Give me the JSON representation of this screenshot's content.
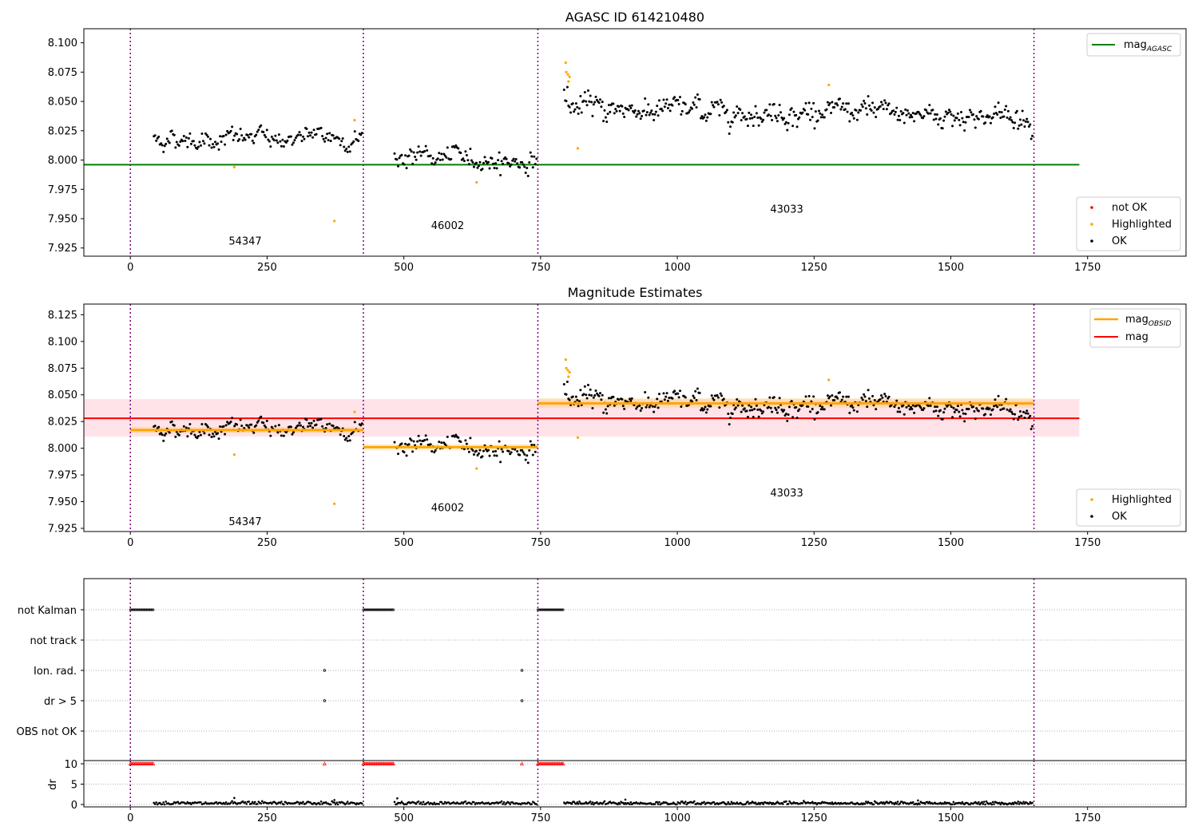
{
  "figure": {
    "panel1_title": "AGASC ID 614210480",
    "panel2_title": "Magnitude Estimates"
  },
  "colors": {
    "ok": "#000000",
    "highlighted": "#ffa500",
    "not_ok": "#ff0000",
    "agasc_line": "#008000",
    "obsid_mag": "#ffa500",
    "mag_line": "#ff0000",
    "mag_band": "#ffc0cb",
    "obsid_boundary": "#800080",
    "flag_grid": "#b0b0b0"
  },
  "chart_data": [
    {
      "type": "scatter",
      "panel": "top",
      "title": "AGASC ID 614210480",
      "xlim": [
        -85,
        1930
      ],
      "ylim": [
        7.918,
        8.112
      ],
      "x_ticks": [
        0,
        250,
        500,
        750,
        1000,
        1250,
        1500,
        1750
      ],
      "y_ticks": [
        7.925,
        7.95,
        7.975,
        8.0,
        8.025,
        8.05,
        8.075,
        8.1
      ],
      "y_tick_labels": [
        "7.925",
        "7.950",
        "7.975",
        "8.000",
        "8.025",
        "8.050",
        "8.075",
        "8.100"
      ],
      "obsid_boundaries": [
        0,
        426,
        745,
        1652
      ],
      "obsid_labels": [
        {
          "text": "54347",
          "x": 210,
          "y": 7.928
        },
        {
          "text": "46002",
          "x": 580,
          "y": 7.941
        },
        {
          "text": "43033",
          "x": 1200,
          "y": 7.955
        }
      ],
      "agasc_mag": {
        "value": 7.996,
        "x_range": [
          -85,
          1735
        ]
      },
      "ok_segments": [
        {
          "x_start": 43,
          "x_end": 424,
          "mean_start": 8.018,
          "mean_end": 8.019,
          "noise": 0.0055,
          "step": 2.2
        },
        {
          "x_start": 483,
          "x_end": 743,
          "mean_start": 8.004,
          "mean_end": 7.998,
          "noise": 0.0055,
          "step": 2.2
        },
        {
          "x_start": 793,
          "x_end": 1650,
          "mean_start": 8.045,
          "mean_end": 8.037,
          "noise": 0.0065,
          "step": 2.0
        }
      ],
      "highlighted": [
        {
          "x": 190,
          "y": 7.994
        },
        {
          "x": 373,
          "y": 7.948
        },
        {
          "x": 410,
          "y": 8.034
        },
        {
          "x": 633,
          "y": 7.981
        },
        {
          "x": 796,
          "y": 8.083
        },
        {
          "x": 797,
          "y": 8.075
        },
        {
          "x": 800,
          "y": 8.073
        },
        {
          "x": 803,
          "y": 8.071
        },
        {
          "x": 801,
          "y": 8.067
        },
        {
          "x": 818,
          "y": 8.01
        },
        {
          "x": 1277,
          "y": 8.064
        }
      ],
      "legend_top": [
        "mag_AGASC"
      ],
      "legend_bottom": [
        "not OK",
        "Highlighted",
        "OK"
      ],
      "legend_top_location": "upper right",
      "legend_bottom_location": "lower right"
    },
    {
      "type": "scatter",
      "panel": "middle",
      "title": "Magnitude Estimates",
      "xlim": [
        -85,
        1930
      ],
      "ylim": [
        7.922,
        8.135
      ],
      "x_ticks": [
        0,
        250,
        500,
        750,
        1000,
        1250,
        1500,
        1750
      ],
      "y_ticks": [
        7.925,
        7.95,
        7.975,
        8.0,
        8.025,
        8.05,
        8.075,
        8.1,
        8.125
      ],
      "y_tick_labels": [
        "7.925",
        "7.950",
        "7.975",
        "8.000",
        "8.025",
        "8.050",
        "8.075",
        "8.100",
        "8.125"
      ],
      "mag": {
        "value": 8.028,
        "band": [
          8.011,
          8.046
        ],
        "x_range": [
          -85,
          1735
        ]
      },
      "mag_obsid": [
        {
          "x_start": 0,
          "x_end": 426,
          "value": 8.017,
          "band": [
            8.014,
            8.02
          ]
        },
        {
          "x_start": 426,
          "x_end": 745,
          "value": 8.001,
          "band": [
            7.998,
            8.004
          ]
        },
        {
          "x_start": 745,
          "x_end": 1652,
          "value": 8.042,
          "band": [
            8.038,
            8.047
          ]
        }
      ],
      "legend_top": [
        "mag_OBSID",
        "mag"
      ],
      "legend_bottom": [
        "Highlighted",
        "OK"
      ]
    },
    {
      "type": "scatter",
      "panel": "flags",
      "categories": [
        "not Kalman",
        "not track",
        "Ion. rad.",
        "dr > 5",
        "OBS not OK"
      ],
      "not_kalman_ranges": [
        [
          0,
          43
        ],
        [
          426,
          483
        ],
        [
          745,
          793
        ]
      ],
      "ion_rad_points": [
        355,
        716
      ],
      "dr_gt5_points": [
        355,
        716
      ],
      "dr_panel": {
        "ylabel": "dr",
        "ylim": [
          -0.5,
          10.5
        ],
        "y_ticks": [
          0,
          5,
          10
        ],
        "clipped_value": 10,
        "clipped_ranges": [
          [
            0,
            43
          ],
          [
            426,
            483
          ],
          [
            745,
            793
          ]
        ],
        "clipped_points": [
          355,
          716
        ],
        "typical_dr": 0.3,
        "outliers": [
          {
            "x": 190,
            "y": 1.6
          },
          {
            "x": 373,
            "y": 1.1
          },
          {
            "x": 488,
            "y": 1.5
          },
          {
            "x": 905,
            "y": 1.2
          },
          {
            "x": 1440,
            "y": 1.0
          }
        ]
      }
    }
  ]
}
